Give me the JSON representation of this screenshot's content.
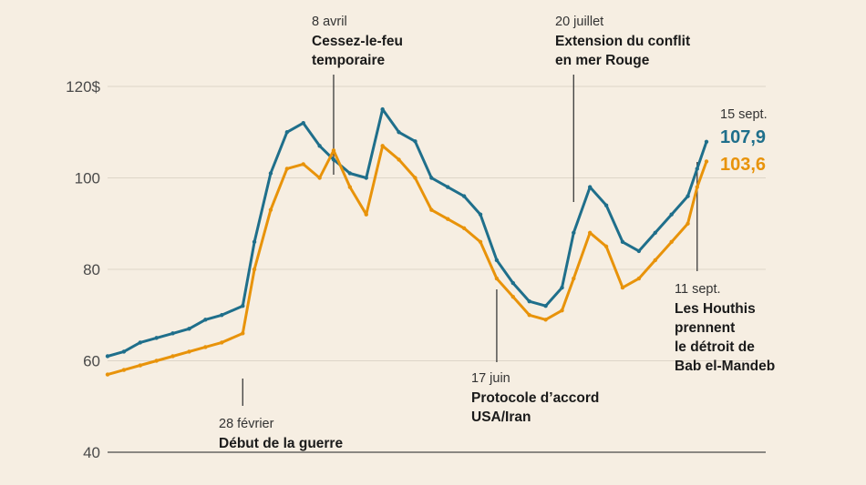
{
  "colors": {
    "background": "#f6eee2",
    "gridline": "#ddd5c8",
    "axis": "#4a4a4a",
    "annotation_line": "#3a3a3a"
  },
  "chart_data": {
    "type": "line",
    "title": "",
    "xlabel": "",
    "ylabel": "",
    "ylim": [
      40,
      120
    ],
    "yticks": [
      {
        "value": 40,
        "label": "40"
      },
      {
        "value": 60,
        "label": "60"
      },
      {
        "value": 80,
        "label": "80"
      },
      {
        "value": 100,
        "label": "100"
      },
      {
        "value": 120,
        "label": "120$"
      }
    ],
    "grid": true,
    "x": [
      "2026-01-01",
      "2026-01-08",
      "2026-01-15",
      "2026-01-22",
      "2026-01-29",
      "2026-02-05",
      "2026-02-12",
      "2026-02-19",
      "2026-02-28",
      "2026-03-05",
      "2026-03-12",
      "2026-03-19",
      "2026-03-26",
      "2026-04-02",
      "2026-04-08",
      "2026-04-15",
      "2026-04-22",
      "2026-04-29",
      "2026-05-06",
      "2026-05-13",
      "2026-05-20",
      "2026-05-27",
      "2026-06-03",
      "2026-06-10",
      "2026-06-17",
      "2026-06-24",
      "2026-07-01",
      "2026-07-08",
      "2026-07-15",
      "2026-07-20",
      "2026-07-27",
      "2026-08-03",
      "2026-08-10",
      "2026-08-17",
      "2026-08-24",
      "2026-08-31",
      "2026-09-07",
      "2026-09-11",
      "2026-09-15"
    ],
    "series": [
      {
        "color": "#1f6f8b",
        "values": [
          61,
          62,
          64,
          65,
          66,
          67,
          69,
          70,
          72,
          86,
          101,
          110,
          112,
          107,
          104,
          101,
          100,
          115,
          110,
          108,
          100,
          98,
          96,
          92,
          82,
          77,
          73,
          72,
          76,
          88,
          98,
          94,
          86,
          84,
          88,
          92,
          96,
          102,
          107.9
        ]
      },
      {
        "color": "#e8930a",
        "values": [
          57,
          58,
          59,
          60,
          61,
          62,
          63,
          64,
          66,
          80,
          93,
          102,
          103,
          100,
          106,
          98,
          92,
          107,
          104,
          100,
          93,
          91,
          89,
          86,
          78,
          74,
          70,
          69,
          71,
          78,
          88,
          85,
          76,
          78,
          82,
          86,
          90,
          98,
          103.6
        ]
      }
    ],
    "end_label": {
      "date": "15 sept.",
      "values": [
        "107,9",
        "103,6"
      ]
    },
    "annotations": [
      {
        "x": "2026-02-28",
        "date": "28 février",
        "text": [
          "Début de la guerre"
        ]
      },
      {
        "x": "2026-04-08",
        "date": "8 avril",
        "text": [
          "Cessez-le-feu",
          "temporaire"
        ]
      },
      {
        "x": "2026-06-17",
        "date": "17 juin",
        "text": [
          "Protocole d’accord",
          "USA/Iran"
        ]
      },
      {
        "x": "2026-07-20",
        "date": "20 juillet",
        "text": [
          "Extension du conflit",
          "en mer Rouge"
        ]
      },
      {
        "x": "2026-09-11",
        "date": "11 sept.",
        "text": [
          "Les Houthis",
          "prennent",
          "le détroit de",
          "Bab el-Mandeb"
        ]
      }
    ]
  }
}
